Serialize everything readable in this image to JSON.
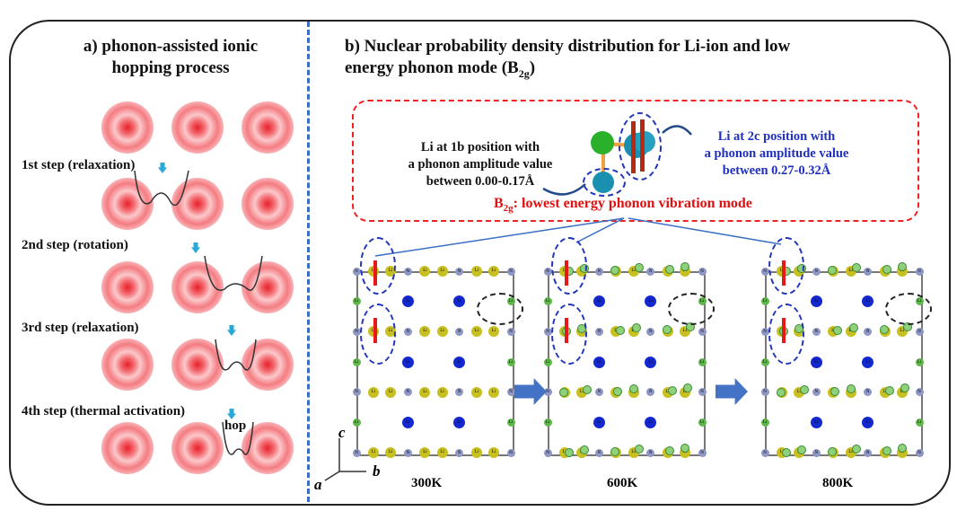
{
  "panel_a": {
    "title_line1": "a) phonon-assisted ionic",
    "title_line2": "hopping process",
    "steps": [
      "1st step (relaxation)",
      "2nd step (rotation)",
      "3rd step (relaxation)",
      "4th step (thermal activation)"
    ],
    "hop_label": "hop"
  },
  "panel_b": {
    "title_line1": "b) Nuclear probability density distribution for Li-ion and low",
    "title_line2_pre": "energy phonon mode (B",
    "title_sub": "2g",
    "title_post": ")",
    "note_1b": [
      "Li at 1b position with",
      "a phonon amplitude value",
      "between 0.00-0.17Å"
    ],
    "note_2c": [
      "Li at 2c position with",
      "a phonon amplitude value",
      "between 0.27-0.32Å"
    ],
    "mode_pre": "B",
    "mode_sub": "2g",
    "mode_post": ": lowest energy phonon vibration mode",
    "temperatures": [
      "300K",
      "600K",
      "800K"
    ],
    "axes": {
      "c": "c",
      "a": "a",
      "b": "b"
    },
    "atom_labels": {
      "n": "N",
      "li": "Li"
    }
  },
  "colors": {
    "note_1b": "#111111",
    "note_2c": "#1f2fbf",
    "mode": "#e01010",
    "divider": "#3a6fc4"
  }
}
